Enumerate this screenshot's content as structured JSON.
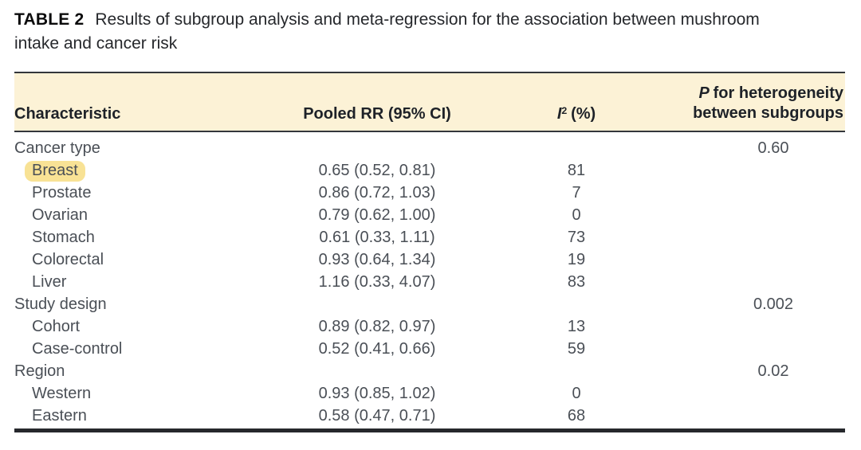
{
  "title": {
    "label": "TABLE 2",
    "line1": "Results of subgroup analysis and meta-regression for the association between mushroom",
    "line2": "intake and cancer risk"
  },
  "table": {
    "headers": {
      "characteristic": "Characteristic",
      "pooled_rr": "Pooled RR (95% CI)",
      "i2_symbol": "I",
      "i2_sup": "2",
      "i2_unit": "(%)",
      "p_symbol": "P",
      "p_line1_rest": "for heterogeneity",
      "p_line2": "between subgroups"
    },
    "rows": [
      {
        "label": "Cancer type",
        "rr": "",
        "i2": "",
        "p": "0.60"
      },
      {
        "label": "Breast",
        "rr": "0.65 (0.52, 0.81)",
        "i2": "81",
        "p": ""
      },
      {
        "label": "Prostate",
        "rr": "0.86 (0.72, 1.03)",
        "i2": "7",
        "p": ""
      },
      {
        "label": "Ovarian",
        "rr": "0.79 (0.62, 1.00)",
        "i2": "0",
        "p": ""
      },
      {
        "label": "Stomach",
        "rr": "0.61 (0.33, 1.11)",
        "i2": "73",
        "p": ""
      },
      {
        "label": "Colorectal",
        "rr": "0.93 (0.64, 1.34)",
        "i2": "19",
        "p": ""
      },
      {
        "label": "Liver",
        "rr": "1.16 (0.33, 4.07)",
        "i2": "83",
        "p": ""
      },
      {
        "label": "Study design",
        "rr": "",
        "i2": "",
        "p": "0.002"
      },
      {
        "label": "Cohort",
        "rr": "0.89 (0.82, 0.97)",
        "i2": "13",
        "p": ""
      },
      {
        "label": "Case-control",
        "rr": "0.52 (0.41, 0.66)",
        "i2": "59",
        "p": ""
      },
      {
        "label": "Region",
        "rr": "",
        "i2": "",
        "p": "0.02"
      },
      {
        "label": "Western",
        "rr": "0.93 (0.85, 1.02)",
        "i2": "0",
        "p": ""
      },
      {
        "label": "Eastern",
        "rr": "0.58 (0.47, 0.71)",
        "i2": "68",
        "p": ""
      }
    ]
  },
  "colors": {
    "header_band": "#FCF2D6",
    "highlight": "#F8E295",
    "body_text": "#4A4F56",
    "heading_text": "#1E2228",
    "rule": "#33363B",
    "rule_heavy": "#26282C"
  }
}
